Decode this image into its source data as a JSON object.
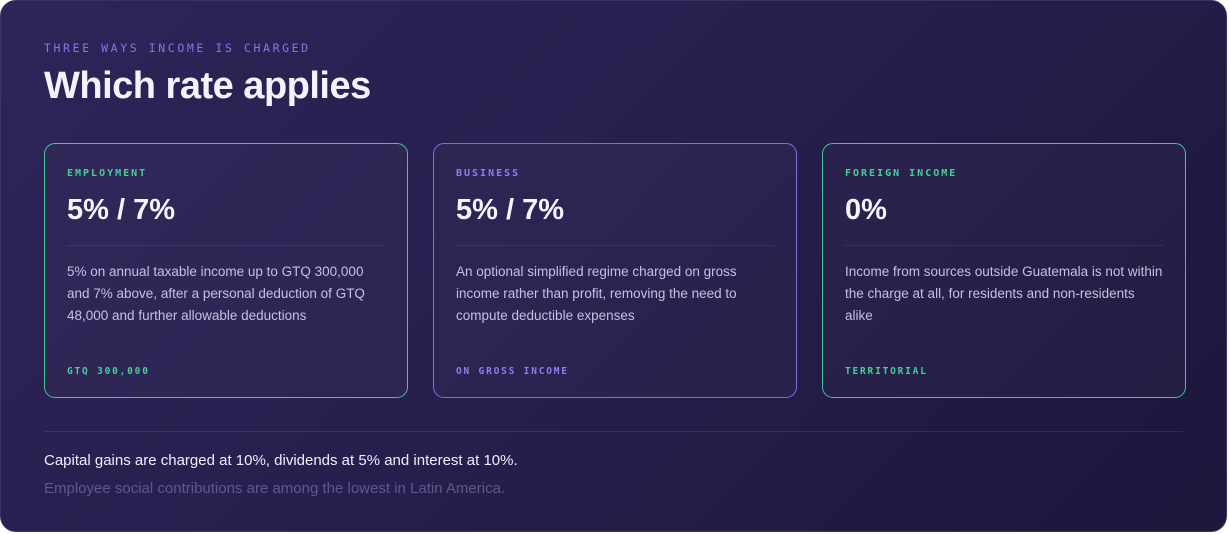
{
  "header": {
    "eyebrow": "THREE WAYS INCOME IS CHARGED",
    "title": "Which rate applies"
  },
  "cards": [
    {
      "label": "EMPLOYMENT",
      "rate": "5% / 7%",
      "description": "5% on annual taxable income up to GTQ 300,000 and 7% above, after a personal deduction of GTQ 48,000 and further allowable deductions",
      "footer": "GTQ 300,000",
      "accent": "#47cf98"
    },
    {
      "label": "BUSINESS",
      "rate": "5% / 7%",
      "description": "An optional simplified regime charged on gross income rather than profit, removing the need to compute deductible expenses",
      "footer": "ON GROSS INCOME",
      "accent": "#8f7ff0"
    },
    {
      "label": "FOREIGN INCOME",
      "rate": "0%",
      "description": "Income from sources outside Guatemala is not within the charge at all, for residents and non-residents alike",
      "footer": "TERRITORIAL",
      "accent": "#47cf98"
    }
  ],
  "notes": {
    "main": "Capital gains are charged at 10%, dividends at 5% and interest at 10%.",
    "sub": "Employee social contributions are among the lowest in Latin America."
  }
}
